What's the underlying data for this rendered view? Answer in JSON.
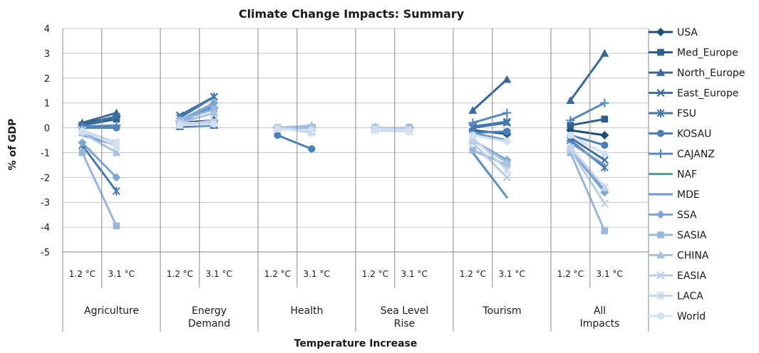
{
  "chart_data": {
    "type": "line",
    "title": "Climate Change Impacts: Summary",
    "xlabel": "Temperature Increase",
    "ylabel": "% of GDP",
    "ylim": [
      -5,
      4
    ],
    "yticks": [
      4,
      3,
      2,
      1,
      0,
      -1,
      -2,
      -3,
      -4,
      -5
    ],
    "grid": true,
    "legend_position": "right",
    "temperature_levels": [
      "1.2 °C",
      "3.1 °C"
    ],
    "groups": [
      "Agriculture",
      "Energy Demand",
      "Health",
      "Sea Level Rise",
      "Tourism",
      "All Impacts"
    ],
    "series": [
      {
        "name": "USA",
        "marker": "diamond",
        "color": "#1f4e79",
        "values": [
          [
            0.15,
            0.45
          ],
          [
            0.2,
            0.3
          ],
          [
            0,
            0
          ],
          [
            0,
            0
          ],
          [
            -0.1,
            -0.25
          ],
          [
            -0.1,
            -0.3
          ]
        ]
      },
      {
        "name": "Med_Europe",
        "marker": "square",
        "color": "#2e5f8c",
        "values": [
          [
            0.1,
            0.35
          ],
          [
            0.1,
            0.2
          ],
          [
            0,
            0
          ],
          [
            0,
            0
          ],
          [
            -0.15,
            -0.2
          ],
          [
            0.1,
            0.35
          ]
        ]
      },
      {
        "name": "North_Europe",
        "marker": "triangle",
        "color": "#36689a",
        "values": [
          [
            0.2,
            0.6
          ],
          [
            0.05,
            0.1
          ],
          [
            0,
            0
          ],
          [
            0,
            0
          ],
          [
            0.7,
            1.95
          ],
          [
            1.1,
            3.0
          ]
        ]
      },
      {
        "name": "East_Europe",
        "marker": "x",
        "color": "#3e72a6",
        "values": [
          [
            0.1,
            0.45
          ],
          [
            0.5,
            1.25
          ],
          [
            0,
            0
          ],
          [
            0,
            0
          ],
          [
            0.0,
            0.2
          ],
          [
            -0.4,
            -1.3
          ]
        ]
      },
      {
        "name": "FSU",
        "marker": "star",
        "color": "#4479b0",
        "values": [
          [
            -0.7,
            -2.55
          ],
          [
            0.4,
            1.25
          ],
          [
            0,
            0
          ],
          [
            0,
            0
          ],
          [
            0.05,
            0.25
          ],
          [
            -0.5,
            -1.6
          ]
        ]
      },
      {
        "name": "KOSAU",
        "marker": "circle",
        "color": "#4a80b8",
        "values": [
          [
            0.0,
            0.0
          ],
          [
            0.1,
            0.1
          ],
          [
            -0.3,
            -0.85
          ],
          [
            0,
            0
          ],
          [
            -0.2,
            -0.15
          ],
          [
            -0.3,
            -0.7
          ]
        ]
      },
      {
        "name": "CAJANZ",
        "marker": "plus",
        "color": "#5288be",
        "values": [
          [
            0.05,
            0.1
          ],
          [
            0.3,
            0.8
          ],
          [
            0,
            0
          ],
          [
            0,
            0
          ],
          [
            0.2,
            0.6
          ],
          [
            0.3,
            1.0
          ]
        ]
      },
      {
        "name": "NAF",
        "marker": "none",
        "color": "#5a8fc2",
        "values": [
          [
            -0.2,
            -0.6
          ],
          [
            0.2,
            0.9
          ],
          [
            0,
            0
          ],
          [
            0,
            0
          ],
          [
            -1.0,
            -2.8
          ],
          [
            -0.9,
            -2.5
          ]
        ]
      },
      {
        "name": "MDE",
        "marker": "none",
        "color": "#6d9acb",
        "values": [
          [
            -0.3,
            -0.7
          ],
          [
            0.1,
            0.3
          ],
          [
            0,
            0
          ],
          [
            0,
            0
          ],
          [
            -0.2,
            -0.5
          ],
          [
            -0.6,
            -1.5
          ]
        ]
      },
      {
        "name": "SSA",
        "marker": "diamond",
        "color": "#7ea6d2",
        "values": [
          [
            -0.6,
            -2.0
          ],
          [
            0.3,
            1.0
          ],
          [
            0,
            0
          ],
          [
            0,
            0
          ],
          [
            -0.5,
            -1.3
          ],
          [
            -0.9,
            -2.6
          ]
        ]
      },
      {
        "name": "SASIA",
        "marker": "square",
        "color": "#9ab6dc",
        "values": [
          [
            -1.0,
            -3.95
          ],
          [
            0.3,
            0.75
          ],
          [
            0,
            0
          ],
          [
            0,
            -0.05
          ],
          [
            -0.9,
            -1.5
          ],
          [
            -1.0,
            -4.15
          ]
        ]
      },
      {
        "name": "CHINA",
        "marker": "triangle",
        "color": "#a9c2e2",
        "values": [
          [
            -0.2,
            -1.0
          ],
          [
            0.2,
            0.6
          ],
          [
            0,
            0.1
          ],
          [
            0,
            0
          ],
          [
            -0.5,
            -1.4
          ],
          [
            -0.8,
            -2.4
          ]
        ]
      },
      {
        "name": "EASIA",
        "marker": "x",
        "color": "#b9cde7",
        "values": [
          [
            -0.1,
            -0.75
          ],
          [
            0.1,
            0.3
          ],
          [
            0,
            -0.15
          ],
          [
            0,
            0
          ],
          [
            -0.6,
            -2.0
          ],
          [
            -0.9,
            -3.05
          ]
        ]
      },
      {
        "name": "LACA",
        "marker": "star",
        "color": "#c6d6ec",
        "values": [
          [
            -0.1,
            -0.6
          ],
          [
            0.2,
            0.2
          ],
          [
            0,
            -0.2
          ],
          [
            -0.1,
            -0.15
          ],
          [
            -0.4,
            -1.7
          ],
          [
            -0.8,
            -2.4
          ]
        ]
      },
      {
        "name": "World",
        "marker": "circle",
        "color": "#d3e0f1",
        "values": [
          [
            -0.15,
            -0.65
          ],
          [
            0.1,
            0.15
          ],
          [
            -0.05,
            -0.1
          ],
          [
            -0.05,
            -0.1
          ],
          [
            -0.3,
            -0.55
          ],
          [
            -0.3,
            -1.05
          ]
        ]
      }
    ]
  }
}
